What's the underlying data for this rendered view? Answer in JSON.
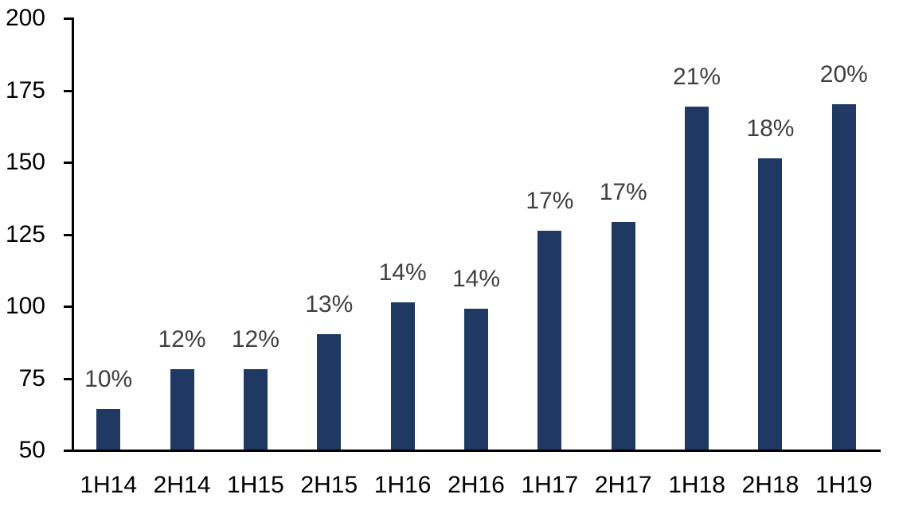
{
  "chart_data": {
    "type": "bar",
    "title": "",
    "xlabel": "",
    "ylabel": "",
    "categories": [
      "1H14",
      "2H14",
      "1H15",
      "2H15",
      "1H16",
      "2H16",
      "1H17",
      "2H17",
      "1H18",
      "2H18",
      "1H19"
    ],
    "values": [
      64,
      78,
      78,
      90,
      101,
      99,
      126,
      129,
      169,
      151,
      170
    ],
    "data_labels": [
      "10%",
      "12%",
      "12%",
      "13%",
      "14%",
      "14%",
      "17%",
      "17%",
      "21%",
      "18%",
      "20%"
    ],
    "ylim": [
      50,
      200
    ],
    "yticks": [
      50,
      75,
      100,
      125,
      150,
      175,
      200
    ],
    "grid": false,
    "legend": false,
    "colors": {
      "bar": "#1F3864",
      "data_label": "#404040",
      "axis": "#000000",
      "tick_label": "#000000",
      "background": "#FFFFFF"
    }
  }
}
